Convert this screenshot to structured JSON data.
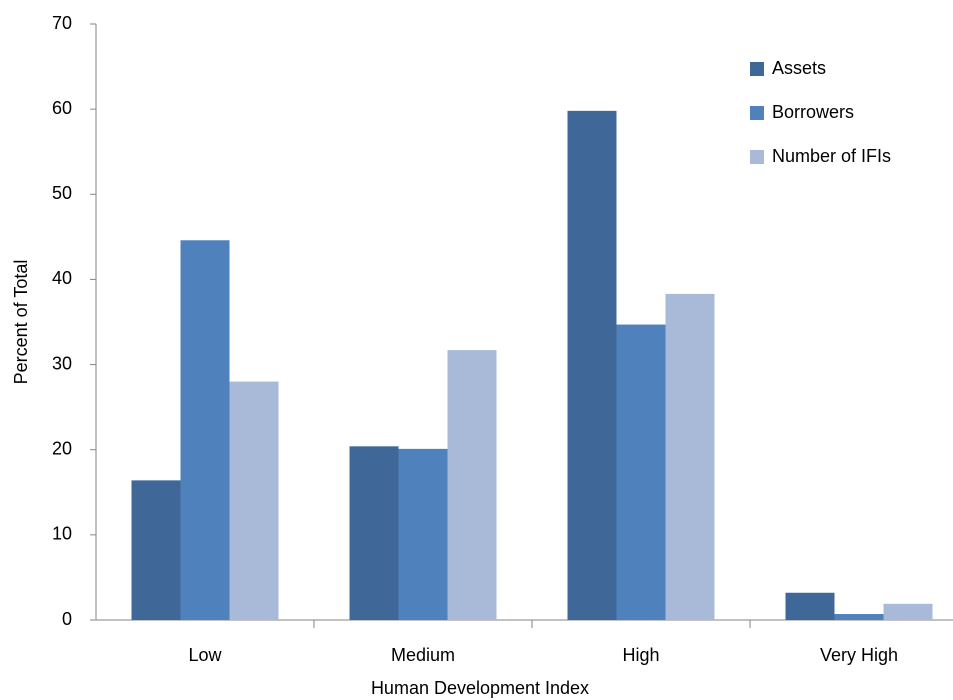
{
  "chart_data": {
    "type": "bar",
    "x_label": "Human Development Index",
    "y_label": "Percent of Total",
    "categories": [
      "Low",
      "Medium",
      "High",
      "Very High"
    ],
    "series": [
      {
        "name": "Assets",
        "color": "#3f6899",
        "values": [
          16.4,
          20.4,
          59.8,
          3.2
        ]
      },
      {
        "name": "Borrowers",
        "color": "#4f81bd",
        "values": [
          44.6,
          20.1,
          34.7,
          0.7
        ]
      },
      {
        "name": "Number of IFIs",
        "color": "#a9bad9",
        "values": [
          28.0,
          31.7,
          38.3,
          1.9
        ]
      }
    ],
    "ylim": [
      0,
      70
    ],
    "yticks": [
      0,
      10,
      20,
      30,
      40,
      50,
      60,
      70
    ],
    "grid": false,
    "legend": "top-right"
  }
}
